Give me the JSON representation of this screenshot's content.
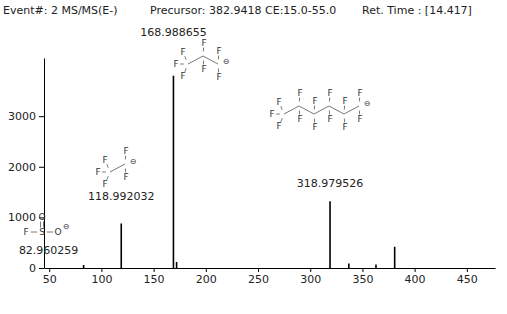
{
  "chart_data": {
    "type": "bar",
    "title": "Event#: 2 MS/MS(E-)",
    "subtitle": [
      "Precursor: 382.9418 CE:15.0-55.0",
      "Ret. Time : [14.417]"
    ],
    "x": [
      82.960259,
      118.992032,
      168.988655,
      172,
      318.979526,
      337,
      363,
      380.9
    ],
    "values": [
      60,
      880,
      3800,
      120,
      1320,
      90,
      70,
      420
    ],
    "color": "#000000",
    "xlim": [
      45,
      477
    ],
    "xticks": [
      50,
      100,
      150,
      200,
      250,
      300,
      350,
      400,
      450
    ],
    "ylim": [
      0,
      4150
    ],
    "yticks": [
      0,
      1000,
      2000,
      3000
    ],
    "annotations": [
      {
        "x": 82.960259,
        "text": "82.960259",
        "atoms": [
          "F",
          "S",
          "O",
          "O"
        ],
        "charge": "⊖"
      },
      {
        "x": 118.992032,
        "text": "118.992032",
        "atoms": [
          "F",
          "F",
          "F",
          "F",
          "F"
        ],
        "charge": "⊖"
      },
      {
        "x": 168.988655,
        "text": "168.988655",
        "atoms": [
          "F",
          "F",
          "F",
          "F",
          "F",
          "F",
          "F"
        ],
        "charge": "⊖"
      },
      {
        "x": 318.979526,
        "text": "318.979526",
        "atoms": [
          "F",
          "F",
          "F",
          "F",
          "F",
          "F",
          "F",
          "F",
          "F",
          "F",
          "F",
          "F",
          "F"
        ],
        "charge": "⊖"
      }
    ]
  }
}
